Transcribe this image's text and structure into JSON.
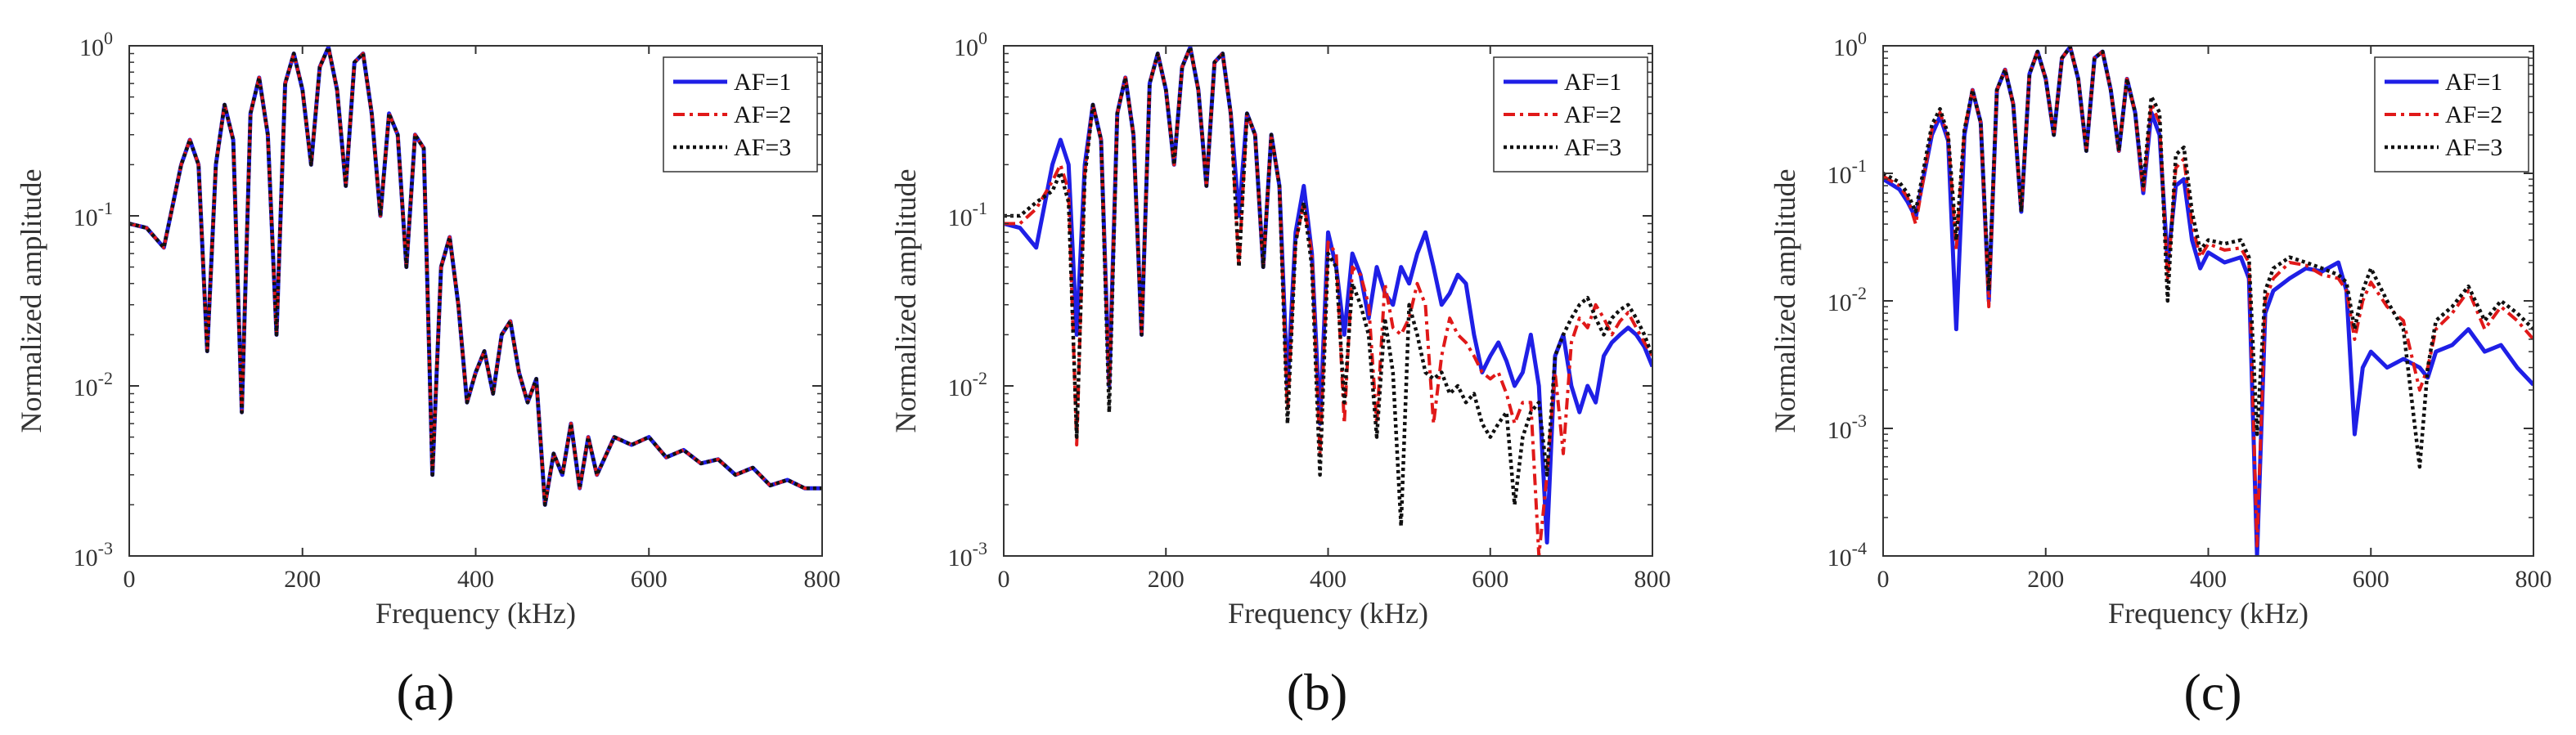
{
  "chart_data": [
    {
      "type": "line",
      "panel_label": "(a)",
      "xlabel": "Frequency (kHz)",
      "ylabel": "Normalized amplitude",
      "xlim": [
        0,
        800
      ],
      "ylim": [
        0.001,
        1
      ],
      "yscale": "log",
      "xticks": [
        0,
        200,
        400,
        600,
        800
      ],
      "yticks": [
        {
          "value": 0.001,
          "exp": "-3"
        },
        {
          "value": 0.01,
          "exp": "-2"
        },
        {
          "value": 0.1,
          "exp": "-1"
        },
        {
          "value": 1,
          "exp": "0"
        }
      ],
      "legend_location": "top-right",
      "x": [
        0,
        20,
        40,
        60,
        70,
        80,
        90,
        100,
        110,
        120,
        130,
        140,
        150,
        160,
        170,
        180,
        190,
        200,
        210,
        220,
        230,
        240,
        250,
        260,
        270,
        280,
        290,
        300,
        310,
        320,
        330,
        340,
        350,
        360,
        370,
        380,
        390,
        400,
        410,
        420,
        430,
        440,
        450,
        460,
        470,
        480,
        490,
        500,
        510,
        520,
        530,
        540,
        560,
        580,
        600,
        620,
        640,
        660,
        680,
        700,
        720,
        740,
        760,
        780,
        800
      ],
      "series": [
        {
          "name": "AF=1",
          "values": [
            0.09,
            0.085,
            0.065,
            0.2,
            0.28,
            0.2,
            0.016,
            0.2,
            0.45,
            0.28,
            0.007,
            0.4,
            0.65,
            0.3,
            0.02,
            0.6,
            0.9,
            0.55,
            0.2,
            0.75,
            0.98,
            0.55,
            0.15,
            0.8,
            0.9,
            0.4,
            0.1,
            0.4,
            0.3,
            0.05,
            0.3,
            0.25,
            0.003,
            0.05,
            0.075,
            0.03,
            0.008,
            0.012,
            0.016,
            0.009,
            0.02,
            0.024,
            0.012,
            0.008,
            0.011,
            0.002,
            0.004,
            0.003,
            0.006,
            0.0025,
            0.005,
            0.003,
            0.005,
            0.0045,
            0.005,
            0.0038,
            0.0042,
            0.0035,
            0.0037,
            0.003,
            0.0033,
            0.0026,
            0.0028,
            0.0025,
            0.0025
          ]
        },
        {
          "name": "AF=2",
          "values": [
            0.09,
            0.085,
            0.065,
            0.2,
            0.28,
            0.2,
            0.016,
            0.2,
            0.45,
            0.28,
            0.007,
            0.4,
            0.65,
            0.3,
            0.02,
            0.6,
            0.9,
            0.55,
            0.2,
            0.75,
            0.98,
            0.55,
            0.15,
            0.8,
            0.9,
            0.4,
            0.1,
            0.4,
            0.3,
            0.05,
            0.3,
            0.25,
            0.003,
            0.05,
            0.075,
            0.03,
            0.008,
            0.012,
            0.016,
            0.009,
            0.02,
            0.024,
            0.012,
            0.008,
            0.011,
            0.002,
            0.004,
            0.003,
            0.006,
            0.0025,
            0.005,
            0.003,
            0.005,
            0.0045,
            0.005,
            0.0038,
            0.0042,
            0.0035,
            0.0037,
            0.003,
            0.0033,
            0.0026,
            0.0028,
            0.0025,
            0.0025
          ]
        },
        {
          "name": "AF=3",
          "values": [
            0.09,
            0.085,
            0.065,
            0.2,
            0.28,
            0.2,
            0.016,
            0.2,
            0.45,
            0.28,
            0.007,
            0.4,
            0.65,
            0.3,
            0.02,
            0.6,
            0.9,
            0.55,
            0.2,
            0.75,
            0.98,
            0.55,
            0.15,
            0.8,
            0.9,
            0.4,
            0.1,
            0.4,
            0.3,
            0.05,
            0.3,
            0.25,
            0.003,
            0.05,
            0.075,
            0.03,
            0.008,
            0.012,
            0.016,
            0.009,
            0.02,
            0.024,
            0.012,
            0.008,
            0.011,
            0.002,
            0.004,
            0.003,
            0.006,
            0.0025,
            0.005,
            0.003,
            0.005,
            0.0045,
            0.005,
            0.0038,
            0.0042,
            0.0035,
            0.0037,
            0.003,
            0.0033,
            0.0026,
            0.0028,
            0.0025,
            0.0025
          ]
        }
      ]
    },
    {
      "type": "line",
      "panel_label": "(b)",
      "xlabel": "Frequency (kHz)",
      "ylabel": "Normalized amplitude",
      "xlim": [
        0,
        800
      ],
      "ylim": [
        0.001,
        1
      ],
      "yscale": "log",
      "xticks": [
        0,
        200,
        400,
        600,
        800
      ],
      "yticks": [
        {
          "value": 0.001,
          "exp": "-3"
        },
        {
          "value": 0.01,
          "exp": "-2"
        },
        {
          "value": 0.1,
          "exp": "-1"
        },
        {
          "value": 1,
          "exp": "0"
        }
      ],
      "legend_location": "top-right",
      "x": [
        0,
        20,
        40,
        60,
        70,
        80,
        90,
        100,
        110,
        120,
        130,
        140,
        150,
        160,
        170,
        180,
        190,
        200,
        210,
        220,
        230,
        240,
        250,
        260,
        270,
        280,
        290,
        300,
        310,
        320,
        330,
        340,
        350,
        360,
        370,
        380,
        390,
        400,
        410,
        420,
        430,
        440,
        450,
        460,
        470,
        480,
        490,
        500,
        510,
        520,
        530,
        540,
        550,
        560,
        570,
        580,
        590,
        600,
        610,
        620,
        630,
        640,
        650,
        660,
        670,
        680,
        690,
        700,
        710,
        720,
        730,
        740,
        750,
        760,
        770,
        780,
        790,
        800
      ],
      "series": [
        {
          "name": "AF=1",
          "values": [
            0.09,
            0.085,
            0.065,
            0.2,
            0.28,
            0.2,
            0.02,
            0.2,
            0.45,
            0.28,
            0.01,
            0.4,
            0.65,
            0.3,
            0.02,
            0.6,
            0.9,
            0.55,
            0.2,
            0.75,
            0.98,
            0.55,
            0.15,
            0.8,
            0.9,
            0.4,
            0.1,
            0.4,
            0.3,
            0.05,
            0.3,
            0.15,
            0.01,
            0.08,
            0.15,
            0.06,
            0.006,
            0.08,
            0.05,
            0.02,
            0.06,
            0.045,
            0.025,
            0.05,
            0.035,
            0.03,
            0.05,
            0.04,
            0.06,
            0.08,
            0.05,
            0.03,
            0.035,
            0.045,
            0.04,
            0.02,
            0.012,
            0.015,
            0.018,
            0.014,
            0.01,
            0.012,
            0.02,
            0.01,
            0.0012,
            0.015,
            0.02,
            0.01,
            0.007,
            0.01,
            0.008,
            0.015,
            0.018,
            0.02,
            0.022,
            0.02,
            0.017,
            0.013
          ]
        },
        {
          "name": "AF=2",
          "values": [
            0.09,
            0.09,
            0.11,
            0.16,
            0.2,
            0.14,
            0.0045,
            0.18,
            0.45,
            0.28,
            0.01,
            0.4,
            0.65,
            0.3,
            0.02,
            0.6,
            0.9,
            0.55,
            0.2,
            0.75,
            0.98,
            0.55,
            0.15,
            0.8,
            0.9,
            0.4,
            0.05,
            0.4,
            0.3,
            0.05,
            0.3,
            0.15,
            0.007,
            0.07,
            0.12,
            0.06,
            0.004,
            0.07,
            0.06,
            0.006,
            0.05,
            0.045,
            0.03,
            0.006,
            0.04,
            0.022,
            0.02,
            0.025,
            0.04,
            0.03,
            0.006,
            0.015,
            0.025,
            0.02,
            0.018,
            0.015,
            0.012,
            0.011,
            0.012,
            0.009,
            0.006,
            0.008,
            0.008,
            0.001,
            0.003,
            0.012,
            0.004,
            0.018,
            0.025,
            0.022,
            0.03,
            0.025,
            0.02,
            0.024,
            0.027,
            0.022,
            0.018,
            0.015
          ]
        },
        {
          "name": "AF=3",
          "values": [
            0.1,
            0.1,
            0.12,
            0.14,
            0.18,
            0.12,
            0.005,
            0.17,
            0.45,
            0.28,
            0.007,
            0.4,
            0.65,
            0.3,
            0.02,
            0.6,
            0.9,
            0.55,
            0.2,
            0.75,
            0.98,
            0.55,
            0.15,
            0.8,
            0.9,
            0.4,
            0.05,
            0.4,
            0.3,
            0.05,
            0.3,
            0.15,
            0.006,
            0.07,
            0.12,
            0.05,
            0.003,
            0.06,
            0.05,
            0.008,
            0.04,
            0.03,
            0.02,
            0.005,
            0.025,
            0.012,
            0.0015,
            0.03,
            0.02,
            0.012,
            0.011,
            0.012,
            0.009,
            0.01,
            0.008,
            0.009,
            0.006,
            0.005,
            0.006,
            0.007,
            0.002,
            0.005,
            0.007,
            0.008,
            0.003,
            0.015,
            0.02,
            0.025,
            0.03,
            0.033,
            0.025,
            0.02,
            0.025,
            0.028,
            0.03,
            0.025,
            0.02,
            0.015
          ]
        }
      ]
    },
    {
      "type": "line",
      "panel_label": "(c)",
      "xlabel": "Frequency (kHz)",
      "ylabel": "Normalized amplitude",
      "xlim": [
        0,
        800
      ],
      "ylim": [
        0.0001,
        1
      ],
      "yscale": "log",
      "xticks": [
        0,
        200,
        400,
        600,
        800
      ],
      "yticks": [
        {
          "value": 0.0001,
          "exp": "-4"
        },
        {
          "value": 0.001,
          "exp": "-3"
        },
        {
          "value": 0.01,
          "exp": "-2"
        },
        {
          "value": 0.1,
          "exp": "-1"
        },
        {
          "value": 1,
          "exp": "0"
        }
      ],
      "legend_location": "top-right",
      "x": [
        0,
        20,
        30,
        40,
        60,
        70,
        80,
        90,
        100,
        110,
        120,
        130,
        140,
        150,
        160,
        170,
        180,
        190,
        200,
        210,
        220,
        230,
        240,
        250,
        260,
        270,
        280,
        290,
        300,
        310,
        320,
        330,
        340,
        350,
        360,
        370,
        380,
        390,
        400,
        420,
        440,
        450,
        460,
        470,
        480,
        500,
        520,
        540,
        560,
        570,
        580,
        590,
        600,
        620,
        640,
        660,
        670,
        680,
        700,
        720,
        740,
        760,
        780,
        800
      ],
      "series": [
        {
          "name": "AF=1",
          "values": [
            0.09,
            0.075,
            0.06,
            0.045,
            0.2,
            0.28,
            0.18,
            0.006,
            0.2,
            0.45,
            0.25,
            0.01,
            0.45,
            0.65,
            0.35,
            0.05,
            0.6,
            0.9,
            0.55,
            0.2,
            0.8,
            0.98,
            0.55,
            0.15,
            0.8,
            0.9,
            0.45,
            0.15,
            0.55,
            0.3,
            0.07,
            0.3,
            0.2,
            0.02,
            0.08,
            0.09,
            0.03,
            0.018,
            0.024,
            0.02,
            0.022,
            0.015,
            0.0001,
            0.008,
            0.012,
            0.015,
            0.018,
            0.017,
            0.02,
            0.012,
            0.0009,
            0.003,
            0.004,
            0.003,
            0.0035,
            0.003,
            0.0025,
            0.004,
            0.0045,
            0.006,
            0.004,
            0.0045,
            0.003,
            0.0022
          ]
        },
        {
          "name": "AF=2",
          "values": [
            0.095,
            0.08,
            0.065,
            0.04,
            0.22,
            0.3,
            0.19,
            0.025,
            0.22,
            0.45,
            0.25,
            0.009,
            0.45,
            0.65,
            0.35,
            0.05,
            0.6,
            0.9,
            0.55,
            0.2,
            0.8,
            0.98,
            0.55,
            0.15,
            0.8,
            0.9,
            0.45,
            0.15,
            0.55,
            0.3,
            0.07,
            0.35,
            0.25,
            0.015,
            0.11,
            0.13,
            0.04,
            0.022,
            0.028,
            0.025,
            0.026,
            0.02,
            0.00012,
            0.01,
            0.015,
            0.02,
            0.019,
            0.016,
            0.015,
            0.012,
            0.005,
            0.01,
            0.014,
            0.009,
            0.007,
            0.002,
            0.003,
            0.006,
            0.008,
            0.012,
            0.006,
            0.009,
            0.007,
            0.005
          ]
        },
        {
          "name": "AF=3",
          "values": [
            0.1,
            0.085,
            0.07,
            0.05,
            0.24,
            0.32,
            0.2,
            0.03,
            0.22,
            0.45,
            0.25,
            0.012,
            0.45,
            0.65,
            0.35,
            0.05,
            0.6,
            0.9,
            0.55,
            0.2,
            0.8,
            0.98,
            0.55,
            0.15,
            0.8,
            0.9,
            0.45,
            0.15,
            0.55,
            0.3,
            0.08,
            0.4,
            0.3,
            0.01,
            0.14,
            0.16,
            0.05,
            0.025,
            0.03,
            0.028,
            0.03,
            0.022,
            0.0009,
            0.012,
            0.018,
            0.022,
            0.02,
            0.018,
            0.016,
            0.014,
            0.006,
            0.012,
            0.018,
            0.01,
            0.006,
            0.0005,
            0.003,
            0.007,
            0.009,
            0.013,
            0.007,
            0.01,
            0.008,
            0.006
          ]
        }
      ]
    }
  ],
  "colors": {
    "AF=1": "#1f1fe6",
    "AF=2": "#e01919",
    "AF=3": "#111111"
  }
}
